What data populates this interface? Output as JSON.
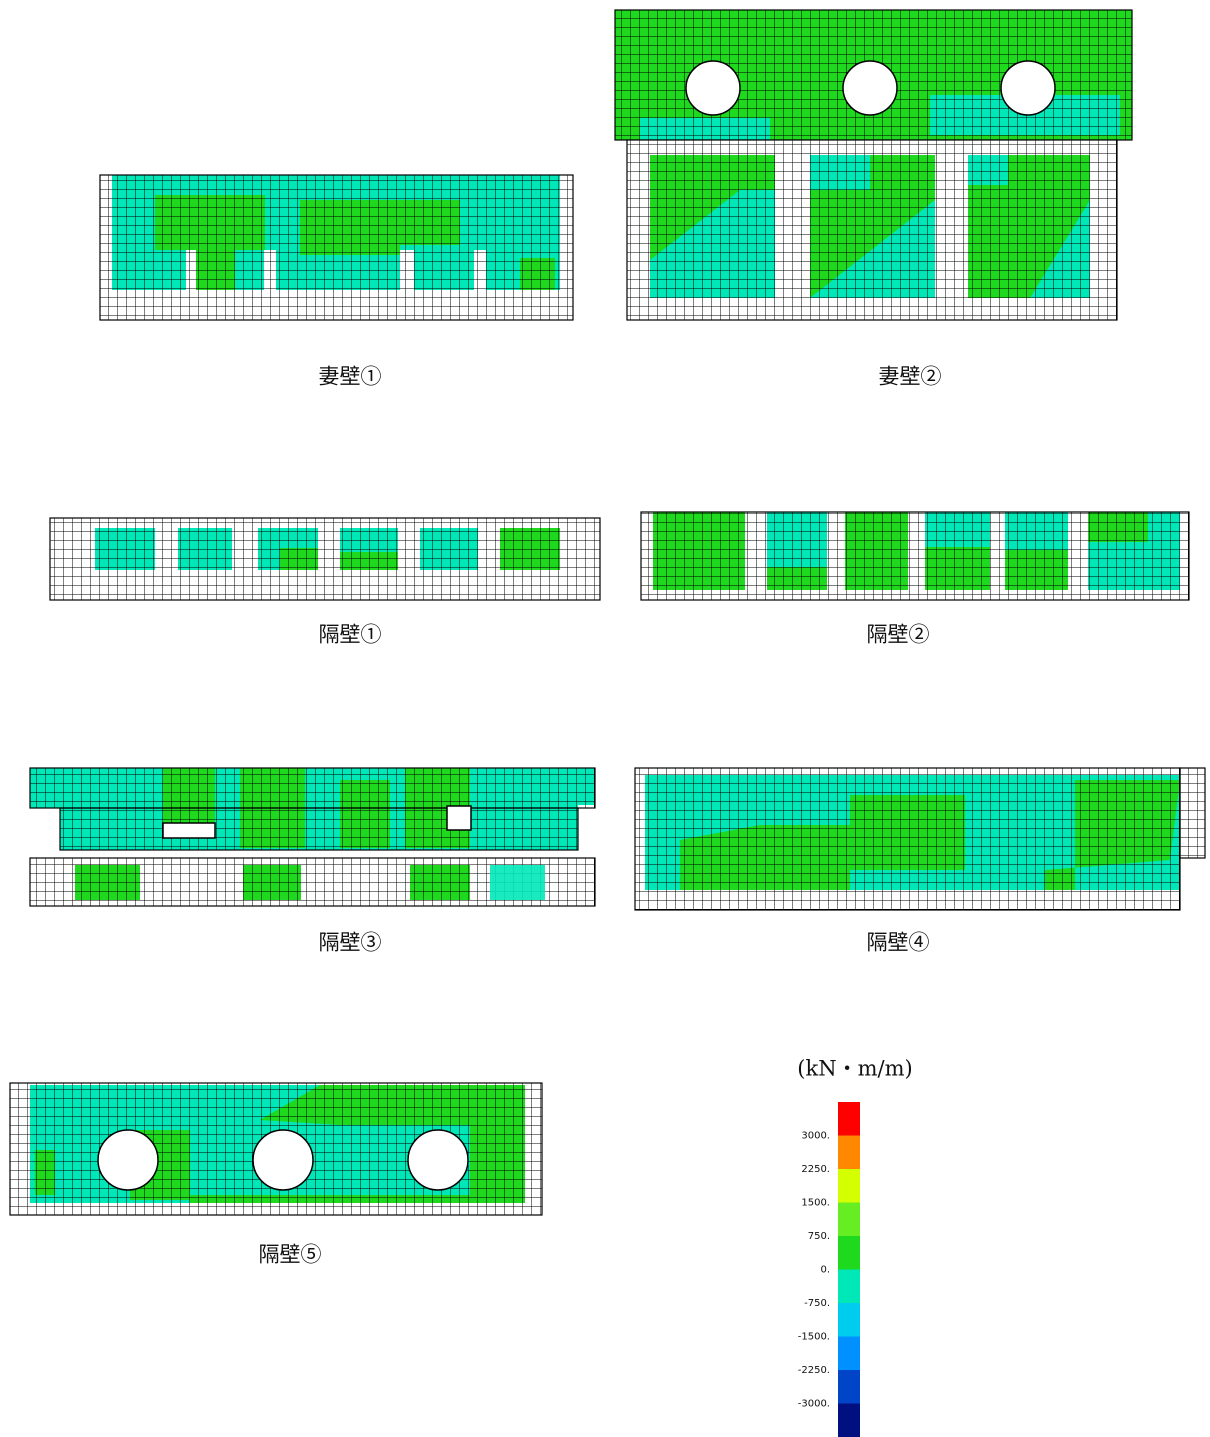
{
  "panels": [
    {
      "label": "妻壁①"
    },
    {
      "label": "妻壁②"
    },
    {
      "label": "隔壁①"
    },
    {
      "label": "隔壁②"
    },
    {
      "label": "隔壁③"
    },
    {
      "label": "隔壁④"
    },
    {
      "label": "隔壁⑤"
    }
  ],
  "legend": {
    "unit": "(kN・m/m)",
    "ticks": [
      {
        "value": 3000,
        "label": "3000."
      },
      {
        "value": 2250,
        "label": "2250."
      },
      {
        "value": 1500,
        "label": "1500."
      },
      {
        "value": 750,
        "label": "750."
      },
      {
        "value": 0,
        "label": "0."
      },
      {
        "value": -750,
        "label": "-750."
      },
      {
        "value": -1500,
        "label": "-1500."
      },
      {
        "value": -2250,
        "label": "-2250."
      },
      {
        "value": -3000,
        "label": "-3000."
      }
    ],
    "colors": [
      "#ff0000",
      "#ff8800",
      "#d4ff00",
      "#66ee22",
      "#1ed91e",
      "#00e8b8",
      "#00ccf0",
      "#0090ff",
      "#0044c8",
      "#001080"
    ]
  }
}
